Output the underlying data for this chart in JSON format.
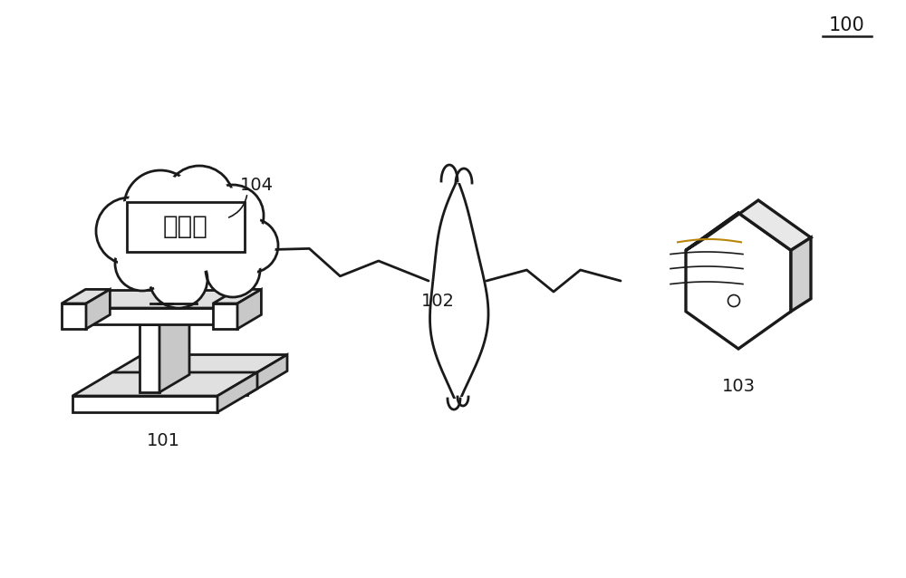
{
  "bg_color": "#ffffff",
  "label_100": "100",
  "label_101": "101",
  "label_102": "102",
  "label_103": "103",
  "label_104": "104",
  "controller_text": "控制器",
  "label_fontsize": 13,
  "text_fontsize": 20,
  "lw": 2.0,
  "color": "#1a1a1a"
}
